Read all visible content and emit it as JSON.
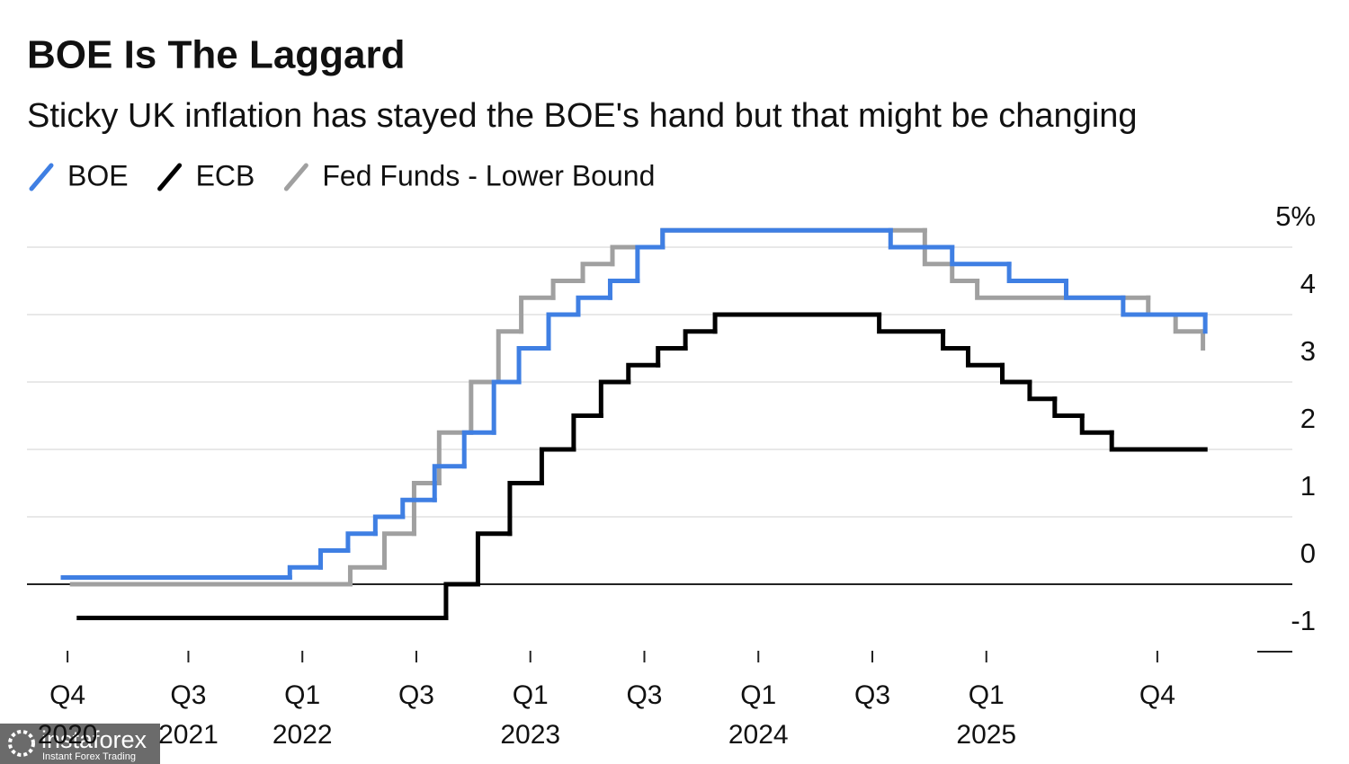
{
  "chart_data": {
    "type": "line",
    "step": "post",
    "title": "BOE Is The Laggard",
    "subtitle": "Sticky UK inflation has stayed the BOE's hand but that might be changing",
    "xlim": [
      2020.8,
      2026.35
    ],
    "ylim": [
      -1,
      5.5
    ],
    "xticks": [
      {
        "value": 2020.97,
        "label": "Q4 2020"
      },
      {
        "value": 2021.5,
        "label": "Q3 2021"
      },
      {
        "value": 2022,
        "label": "Q1 2022"
      },
      {
        "value": 2022.5,
        "label": "Q3"
      },
      {
        "value": 2023,
        "label": "Q1 2023"
      },
      {
        "value": 2023.5,
        "label": "Q3"
      },
      {
        "value": 2024,
        "label": "Q1 2024"
      },
      {
        "value": 2024.5,
        "label": "Q3"
      },
      {
        "value": 2025,
        "label": "Q1 2025"
      },
      {
        "value": 2025.75,
        "label": "Q4"
      }
    ],
    "yticks": [
      -1,
      0,
      1,
      2,
      3,
      4,
      {
        "value": 5,
        "label": "5%"
      }
    ],
    "grid": true,
    "legend": "top-left",
    "series": [
      {
        "name": "BOE",
        "color": "#3f7fe3",
        "x": [
          2020.95,
          2021.945,
          2022.08,
          2022.2,
          2022.32,
          2022.44,
          2022.58,
          2022.71,
          2022.84,
          2022.95,
          2023.08,
          2023.21,
          2023.35,
          2023.47,
          2023.58,
          2024.58,
          2024.85,
          2025.1,
          2025.35,
          2025.6,
          2025.96
        ],
        "values": [
          0.1,
          0.25,
          0.5,
          0.75,
          1.0,
          1.25,
          1.75,
          2.25,
          3.0,
          3.5,
          4.0,
          4.25,
          4.5,
          5.0,
          5.25,
          5.0,
          4.75,
          4.5,
          4.25,
          4.0,
          3.75
        ]
      },
      {
        "name": "ECB",
        "color": "#000000",
        "x": [
          2021.02,
          2022.63,
          2022.77,
          2022.91,
          2023.05,
          2023.19,
          2023.31,
          2023.43,
          2023.56,
          2023.68,
          2023.81,
          2024.53,
          2024.81,
          2024.92,
          2025.07,
          2025.19,
          2025.3,
          2025.42,
          2025.55,
          2025.96
        ],
        "values": [
          -0.5,
          0.0,
          0.75,
          1.5,
          2.0,
          2.5,
          3.0,
          3.25,
          3.5,
          3.75,
          4.0,
          3.75,
          3.5,
          3.25,
          3.0,
          2.75,
          2.5,
          2.25,
          2.0,
          2.0
        ]
      },
      {
        "name": "Fed Funds - Lower Bound",
        "color": "#a0a0a0",
        "x": [
          2020.99,
          2022.21,
          2022.36,
          2022.49,
          2022.6,
          2022.74,
          2022.86,
          2022.96,
          2023.1,
          2023.23,
          2023.36,
          2023.58,
          2024.73,
          2024.85,
          2024.96,
          2025.71,
          2025.83,
          2025.95
        ],
        "values": [
          0,
          0.25,
          0.75,
          1.5,
          2.25,
          3.0,
          3.75,
          4.25,
          4.5,
          4.75,
          5.0,
          5.25,
          4.75,
          4.5,
          4.25,
          4.0,
          3.75,
          3.5
        ]
      }
    ]
  },
  "watermark": {
    "name": "instaforex",
    "tagline": "Instant Forex Trading"
  }
}
